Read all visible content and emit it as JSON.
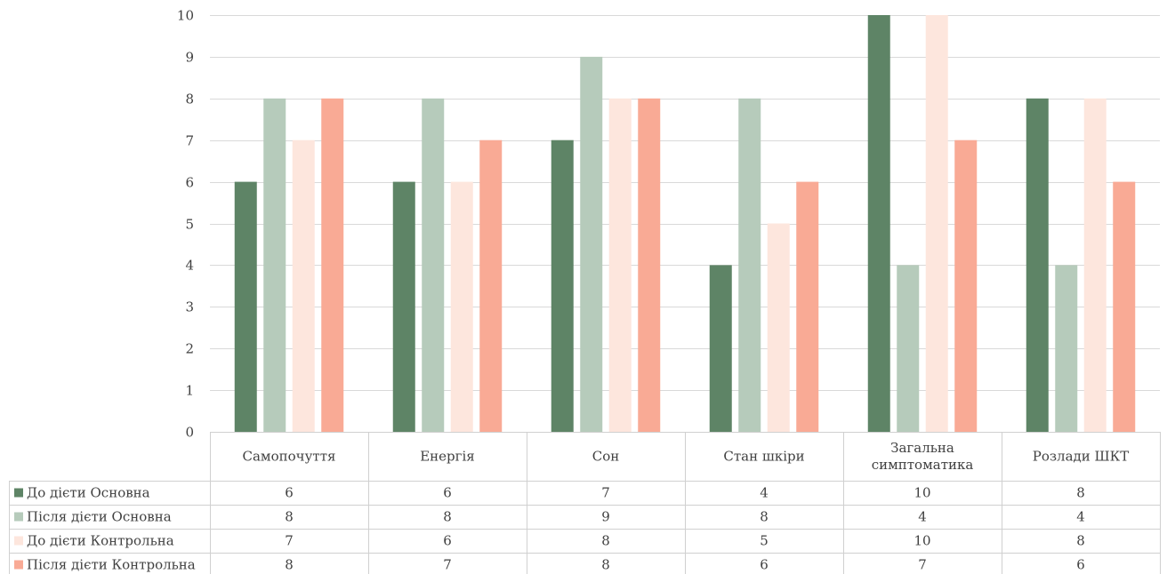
{
  "chart_data": {
    "type": "bar",
    "title": "",
    "xlabel": "",
    "ylabel": "",
    "ylim": [
      0,
      10
    ],
    "yticks": [
      0,
      1,
      2,
      3,
      4,
      5,
      6,
      7,
      8,
      9,
      10
    ],
    "grid": true,
    "legend": "bottom-left data table",
    "categories": [
      [
        "Самопочуття"
      ],
      [
        "Енергія"
      ],
      [
        "Сон"
      ],
      [
        "Стан шкіри"
      ],
      [
        "Загальна",
        "симптоматика"
      ],
      [
        "Розлади ШКТ"
      ]
    ],
    "series": [
      {
        "name": "До дієти Основна",
        "color": "#5e8466",
        "values": [
          6,
          6,
          7,
          4,
          10,
          8
        ]
      },
      {
        "name": "Після дієти Основна",
        "color": "#b6cbbb",
        "values": [
          8,
          8,
          9,
          8,
          4,
          4
        ]
      },
      {
        "name": "До дієти Контрольна",
        "color": "#fde6dd",
        "values": [
          7,
          6,
          8,
          5,
          10,
          8
        ]
      },
      {
        "name": "Після дієти Контрольна",
        "color": "#f9aa95",
        "values": [
          8,
          7,
          8,
          6,
          7,
          6
        ]
      }
    ],
    "colors": {
      "gridline": "#d9d9d9",
      "table_border": "#d0d0d0",
      "text": "#404040"
    }
  }
}
